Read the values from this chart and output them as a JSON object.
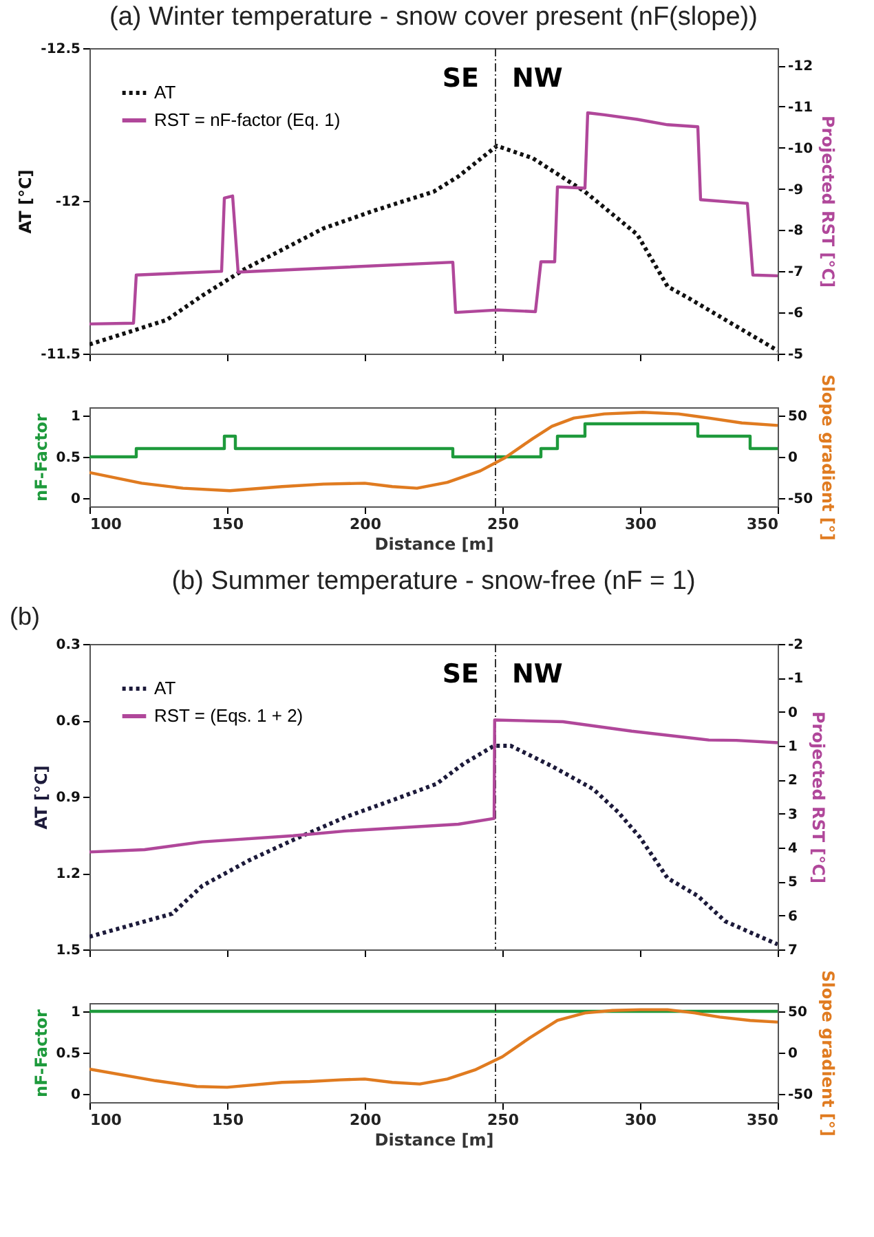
{
  "chart_data": [
    {
      "type": "line",
      "title": "(a) Winter temperature - snow cover present (nF(slope))",
      "ylabel": "AT [°C]",
      "y2label": "Projected RST [°C]",
      "legend": "top left",
      "tick_labels": "y",
      "xlim": [
        100,
        350
      ],
      "xticks": [
        100,
        150,
        200,
        250,
        300,
        350
      ],
      "ylim": [
        -11.5,
        -12.5
      ],
      "yticks": [
        -12.5,
        -12,
        -11.5
      ],
      "y2lim": [
        -5,
        -12.42
      ],
      "y2ticks": [
        -12,
        -11,
        -10,
        -9,
        -8,
        -7,
        -6,
        -5
      ],
      "ref_lines": [
        {
          "axis": "x",
          "value": 247.5,
          "line_style": "dashed",
          "color": "#333333"
        }
      ],
      "annotations": [
        "SE",
        "NW"
      ],
      "series": [
        {
          "name": "AT",
          "color": "#111111",
          "line_style": "dotted",
          "x": [
            100,
            128,
            141,
            157,
            170,
            185,
            204,
            225,
            234,
            248,
            261,
            280,
            299,
            310,
            318,
            333,
            350
          ],
          "values": [
            -11.53,
            -11.61,
            -11.69,
            -11.78,
            -11.84,
            -11.91,
            -11.97,
            -12.03,
            -12.08,
            -12.18,
            -12.14,
            -12.03,
            -11.89,
            -11.72,
            -11.68,
            -11.6,
            -11.51
          ]
        },
        {
          "name": "RST = nF-factor (Eq. 1)",
          "color": "#b0479a",
          "line_style": "solid",
          "axis": "y2",
          "x": [
            100,
            116,
            117,
            148,
            149,
            152,
            154,
            232,
            233,
            248,
            262,
            264,
            269,
            270,
            280,
            281,
            287,
            299,
            310,
            321,
            322,
            339,
            341,
            350
          ],
          "values": [
            -5.72,
            -5.74,
            -6.91,
            -7.0,
            -8.78,
            -8.83,
            -6.98,
            -7.22,
            -6.0,
            -6.06,
            -6.02,
            -7.23,
            -7.23,
            -9.05,
            -9.02,
            -10.85,
            -10.8,
            -10.69,
            -10.56,
            -10.51,
            -8.74,
            -8.65,
            -6.91,
            -6.89
          ]
        }
      ]
    },
    {
      "type": "line",
      "xlabel": "Distance [m]",
      "ylabel": "nF-Factor",
      "y2label": "Slope gradient [°]",
      "xlim": [
        100,
        350
      ],
      "xticks": [
        100,
        150,
        200,
        250,
        300,
        350
      ],
      "ylim": [
        -0.1,
        1.1
      ],
      "yticks": [
        0,
        0.5,
        1
      ],
      "y2lim": [
        -60,
        60
      ],
      "y2ticks": [
        -50,
        0,
        50
      ],
      "ref_lines": [
        {
          "axis": "x",
          "value": 247.5,
          "line_style": "dashed",
          "color": "#333333"
        }
      ],
      "series": [
        {
          "type": "step",
          "color": "#1e9a3c",
          "x": [
            100,
            117,
            149,
            153,
            232,
            264,
            270,
            280,
            321,
            340,
            350
          ],
          "values": [
            0.5,
            0.6,
            0.75,
            0.6,
            0.5,
            0.6,
            0.75,
            0.9,
            0.75,
            0.6,
            0.6
          ]
        },
        {
          "color": "#e07b20",
          "axis": "y2",
          "x": [
            100,
            119,
            134,
            151,
            170,
            185,
            200,
            210,
            219,
            230,
            242,
            251,
            261,
            268,
            276,
            287,
            301,
            314,
            325,
            337,
            350
          ],
          "values": [
            -19,
            -32,
            -38,
            -41,
            -36,
            -33,
            -32,
            -36,
            -38,
            -31,
            -17,
            -1,
            22,
            37,
            47,
            52,
            54,
            52,
            47,
            41,
            38
          ]
        }
      ]
    },
    {
      "type": "line",
      "title": "(b) Summer temperature - snow-free (nF = 1)",
      "ylabel": "AT [°C]",
      "y2label": "Projected RST [°C]",
      "legend": "top left",
      "tick_labels": "y",
      "xlim": [
        100,
        350
      ],
      "xticks": [
        100,
        150,
        200,
        250,
        300,
        350
      ],
      "ylim": [
        1.5,
        0.3
      ],
      "yticks": [
        0.3,
        0.6,
        0.9,
        1.2,
        1.5
      ],
      "y2lim": [
        7,
        -2
      ],
      "y2ticks": [
        -2,
        -1,
        0,
        1,
        2,
        3,
        4,
        5,
        6,
        7
      ],
      "ref_lines": [
        {
          "axis": "x",
          "value": 247.5,
          "line_style": "dashed",
          "color": "#333333"
        }
      ],
      "annotations": [
        "(b)",
        "SE",
        "NW"
      ],
      "series": [
        {
          "name": "AT",
          "color": "#1c1a3a",
          "line_style": "dotted",
          "x": [
            100,
            130,
            141,
            158,
            174,
            193,
            211,
            226,
            236,
            247,
            253,
            268,
            283,
            292,
            300,
            310,
            321,
            331,
            350
          ],
          "values": [
            1.45,
            1.36,
            1.25,
            1.15,
            1.07,
            0.98,
            0.91,
            0.85,
            0.77,
            0.7,
            0.7,
            0.78,
            0.87,
            0.96,
            1.06,
            1.22,
            1.29,
            1.39,
            1.48
          ]
        },
        {
          "name": "RST = (Eqs. 1 + 2)",
          "color": "#b0479a",
          "line_style": "solid",
          "axis": "y2",
          "x": [
            100,
            120,
            141,
            174,
            193,
            234,
            247,
            247.2,
            272,
            297,
            325,
            335,
            350
          ],
          "values": [
            4.13,
            4.06,
            3.83,
            3.65,
            3.51,
            3.31,
            3.14,
            0.24,
            0.29,
            0.57,
            0.83,
            0.84,
            0.91
          ]
        }
      ]
    },
    {
      "type": "line",
      "xlabel": "Distance [m]",
      "ylabel": "nF-Factor",
      "y2label": "Slope gradient [°]",
      "xlim": [
        100,
        350
      ],
      "xticks": [
        100,
        150,
        200,
        250,
        300,
        350
      ],
      "ylim": [
        -0.1,
        1.1
      ],
      "yticks": [
        0,
        0.5,
        1
      ],
      "y2lim": [
        -60,
        60
      ],
      "y2ticks": [
        -50,
        0,
        50
      ],
      "ref_lines": [
        {
          "axis": "x",
          "value": 247.5,
          "line_style": "dashed",
          "color": "#333333"
        }
      ],
      "series": [
        {
          "color": "#1e9a3c",
          "x": [
            100,
            350
          ],
          "values": [
            1,
            1
          ]
        },
        {
          "color": "#e07b20",
          "axis": "y2",
          "x": [
            100,
            124,
            139,
            150,
            170,
            180,
            191,
            200,
            210,
            220,
            230,
            240,
            250,
            260,
            270,
            280,
            290,
            300,
            310,
            320,
            329,
            340,
            350
          ],
          "values": [
            -20,
            -34,
            -41,
            -42,
            -36,
            -35,
            -33,
            -32,
            -36,
            -38,
            -32,
            -21,
            -5,
            18,
            39,
            48,
            51,
            52,
            52,
            48,
            43,
            39,
            37
          ]
        }
      ]
    }
  ]
}
